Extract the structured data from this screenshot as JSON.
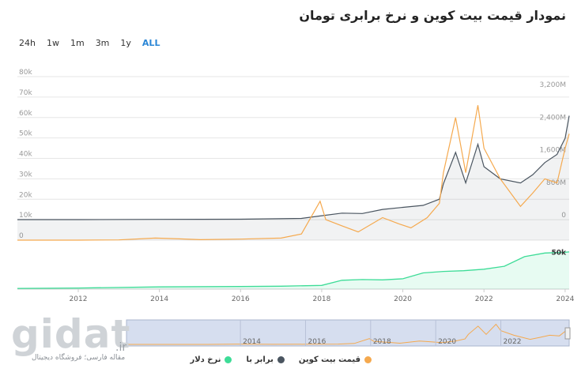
{
  "title": "نمودار قیمت بیت کوین و نرخ برابری تومان",
  "range_buttons": [
    {
      "label": "24h",
      "active": false
    },
    {
      "label": "1w",
      "active": false
    },
    {
      "label": "1m",
      "active": false
    },
    {
      "label": "3m",
      "active": false
    },
    {
      "label": "1y",
      "active": false
    },
    {
      "label": "ALL",
      "active": true
    }
  ],
  "brand": {
    "name": "gidat",
    "tld": ".ir",
    "tagline": "مقاله فارسی؛ فروشگاه دیجیتال"
  },
  "colors": {
    "btc_usd": "#f5a94e",
    "btc_irt": "#4a5560",
    "dollar": "#3ddc97",
    "grid": "#e6e6e6"
  },
  "chart_data": {
    "type": "line",
    "x_range": [
      2010.5,
      2024.1
    ],
    "x_ticks": [
      "2012",
      "2014",
      "2016",
      "2018",
      "2020",
      "2022",
      "2024"
    ],
    "y_left": {
      "ticks": [
        "0",
        "10k",
        "20k",
        "30k",
        "40k",
        "50k",
        "60k",
        "70k",
        "80k"
      ],
      "range": [
        0,
        80000
      ]
    },
    "y_right": {
      "ticks": [
        "0",
        "800M",
        "1,600M",
        "2,400M",
        "3,200M"
      ],
      "range": [
        0,
        3200
      ]
    },
    "dollar_axis": {
      "label": "50k",
      "range": [
        0,
        60000
      ]
    },
    "legend": [
      {
        "key": "btc_usd",
        "name": "قیمت بیت کوین"
      },
      {
        "key": "btc_irt",
        "name": "برابر با"
      },
      {
        "key": "dollar",
        "name": "نرخ دلار"
      }
    ],
    "series": [
      {
        "key": "btc_usd",
        "axis": "left",
        "x": [
          2010.5,
          2012,
          2013,
          2013.9,
          2014.5,
          2015,
          2016,
          2017,
          2017.5,
          2017.96,
          2018.1,
          2018.5,
          2018.9,
          2019.5,
          2019.9,
          2020.2,
          2020.6,
          2020.9,
          2021.0,
          2021.3,
          2021.55,
          2021.85,
          2022.0,
          2022.4,
          2022.9,
          2023.2,
          2023.5,
          2023.8,
          2024.0,
          2024.1
        ],
        "values": [
          0,
          10,
          100,
          1000,
          600,
          250,
          500,
          1000,
          3000,
          19000,
          10000,
          7000,
          4000,
          11000,
          8000,
          6000,
          11000,
          18000,
          33000,
          60000,
          33000,
          66000,
          45000,
          30000,
          16500,
          23000,
          30000,
          28000,
          45000,
          52000
        ]
      },
      {
        "key": "btc_irt",
        "axis": "right",
        "x": [
          2010.5,
          2012,
          2014,
          2016,
          2017.5,
          2017.96,
          2018.5,
          2019.0,
          2019.5,
          2020.0,
          2020.5,
          2020.9,
          2021.0,
          2021.3,
          2021.55,
          2021.85,
          2022.0,
          2022.4,
          2022.9,
          2023.2,
          2023.5,
          2023.8,
          2024.0,
          2024.1
        ],
        "values": [
          0,
          0.5,
          5,
          10,
          30,
          90,
          160,
          150,
          250,
          300,
          350,
          500,
          880,
          1650,
          900,
          1850,
          1300,
          1000,
          900,
          1100,
          1400,
          1600,
          2000,
          2550
        ]
      },
      {
        "key": "dollar",
        "axis": "dollar",
        "x": [
          2010.5,
          2012,
          2014,
          2016,
          2017,
          2018,
          2018.5,
          2019,
          2019.5,
          2020,
          2020.5,
          2021,
          2021.5,
          2022,
          2022.5,
          2023,
          2023.5,
          2024,
          2024.1
        ],
        "values": [
          1000,
          1500,
          3000,
          3500,
          4000,
          5000,
          12000,
          13000,
          12500,
          14000,
          22000,
          24000,
          25000,
          27000,
          31000,
          44000,
          49000,
          50000,
          50500
        ]
      }
    ]
  }
}
